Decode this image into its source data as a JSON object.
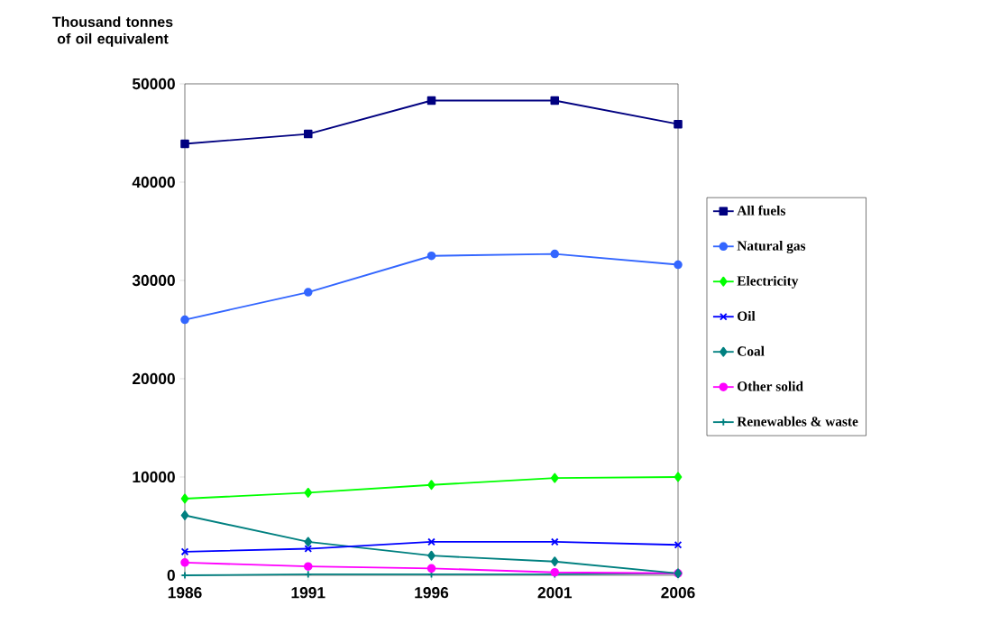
{
  "chart_data": {
    "type": "line",
    "ylabel": "Thousand tonnes of oil equivalent",
    "x": [
      1986,
      1991,
      1996,
      2001,
      2006
    ],
    "xlim": [
      1986,
      2006
    ],
    "xticks": [
      1986,
      1991,
      1996,
      2001,
      2006
    ],
    "ylim": [
      0,
      50000
    ],
    "yticks": [
      0,
      10000,
      20000,
      30000,
      40000,
      50000
    ],
    "grid": false,
    "legend": "right",
    "series": [
      {
        "name": "All fuels",
        "color": "#000080",
        "marker": "square",
        "values": [
          43900,
          44900,
          48300,
          48300,
          45900
        ]
      },
      {
        "name": "Natural gas",
        "color": "#3366ff",
        "marker": "circle",
        "values": [
          26000,
          28800,
          32500,
          32700,
          31600
        ]
      },
      {
        "name": "Electricity",
        "color": "#00ff00",
        "marker": "diamond",
        "values": [
          7800,
          8400,
          9200,
          9900,
          10000
        ]
      },
      {
        "name": "Oil",
        "color": "#0000ff",
        "marker": "cross",
        "values": [
          2400,
          2700,
          3400,
          3400,
          3100
        ]
      },
      {
        "name": "Coal",
        "color": "#008080",
        "marker": "diamond",
        "values": [
          6100,
          3400,
          2000,
          1400,
          200
        ]
      },
      {
        "name": "Other solid",
        "color": "#ff00ff",
        "marker": "circle",
        "values": [
          1300,
          900,
          700,
          300,
          200
        ]
      },
      {
        "name": "Renewables & waste",
        "color": "#008080",
        "marker": "plus",
        "values": [
          0,
          100,
          100,
          100,
          200
        ]
      }
    ]
  }
}
